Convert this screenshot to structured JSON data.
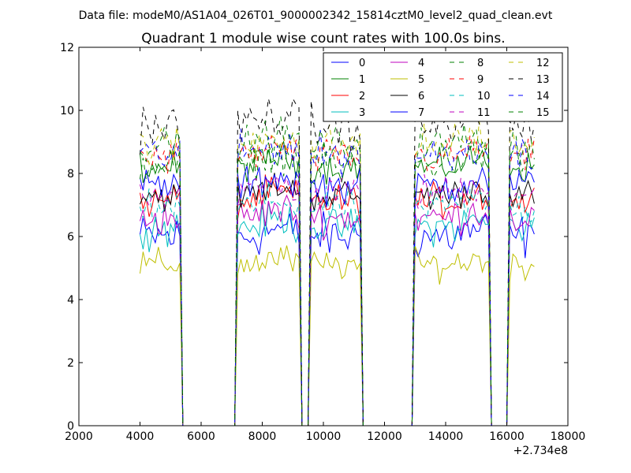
{
  "chart_data": {
    "type": "line",
    "suptitle": "Data file: modeM0/AS1A04_026T01_9000002342_15814cztM0_level2_quad_clean.evt",
    "title": "Quadrant 1 module wise count rates with 100.0s bins.",
    "xlabel": "",
    "ylabel": "",
    "x_offset_label": "+2.734e8",
    "xlim": [
      2000,
      18000
    ],
    "ylim": [
      0,
      12
    ],
    "x_ticks": [
      2000,
      4000,
      6000,
      8000,
      10000,
      12000,
      14000,
      16000,
      18000
    ],
    "x_tick_labels": [
      "2000",
      "4000",
      "6000",
      "8000",
      "10000",
      "12000",
      "14000",
      "16000",
      "18000"
    ],
    "y_ticks": [
      0,
      2,
      4,
      6,
      8,
      10,
      12
    ],
    "y_tick_labels": [
      "0",
      "2",
      "4",
      "6",
      "8",
      "10",
      "12"
    ],
    "grid": false,
    "legend_position": "top-right",
    "legend_columns": 4,
    "bin_width_s": 100,
    "segments": [
      [
        4000,
        5300
      ],
      [
        7200,
        9200
      ],
      [
        9600,
        11200
      ],
      [
        13000,
        15400
      ],
      [
        16100,
        16900
      ]
    ],
    "gap_points": [
      5400,
      7100,
      9300,
      9500,
      11300,
      12900,
      15500,
      16000
    ],
    "series": [
      {
        "name": "0",
        "color": "#0000ff",
        "dash": "solid",
        "level": 6.0,
        "noise": 0.45
      },
      {
        "name": "1",
        "color": "#008000",
        "dash": "solid",
        "level": 8.2,
        "noise": 0.3
      },
      {
        "name": "2",
        "color": "#ff0000",
        "dash": "solid",
        "level": 7.1,
        "noise": 0.35
      },
      {
        "name": "3",
        "color": "#00bfbf",
        "dash": "solid",
        "level": 6.3,
        "noise": 0.35
      },
      {
        "name": "4",
        "color": "#bf00bf",
        "dash": "solid",
        "level": 6.6,
        "noise": 0.35
      },
      {
        "name": "5",
        "color": "#bfbf00",
        "dash": "solid",
        "level": 5.1,
        "noise": 0.3
      },
      {
        "name": "6",
        "color": "#000000",
        "dash": "solid",
        "level": 7.3,
        "noise": 0.3
      },
      {
        "name": "7",
        "color": "#0000ff",
        "dash": "solid",
        "level": 7.6,
        "noise": 0.35
      },
      {
        "name": "8",
        "color": "#008000",
        "dash": "dashed",
        "level": 8.3,
        "noise": 0.35
      },
      {
        "name": "9",
        "color": "#ff0000",
        "dash": "dashed",
        "level": 8.5,
        "noise": 0.35
      },
      {
        "name": "10",
        "color": "#00bfbf",
        "dash": "dashed",
        "level": 6.9,
        "noise": 0.35
      },
      {
        "name": "11",
        "color": "#bf00bf",
        "dash": "dashed",
        "level": 7.4,
        "noise": 0.35
      },
      {
        "name": "12",
        "color": "#bfbf00",
        "dash": "dashed",
        "level": 8.9,
        "noise": 0.4
      },
      {
        "name": "13",
        "color": "#000000",
        "dash": "dashed",
        "level": 9.5,
        "noise": 0.45
      },
      {
        "name": "14",
        "color": "#0000ff",
        "dash": "dashed",
        "level": 8.6,
        "noise": 0.4
      },
      {
        "name": "15",
        "color": "#008000",
        "dash": "dashed",
        "level": 8.9,
        "noise": 0.35
      }
    ]
  }
}
